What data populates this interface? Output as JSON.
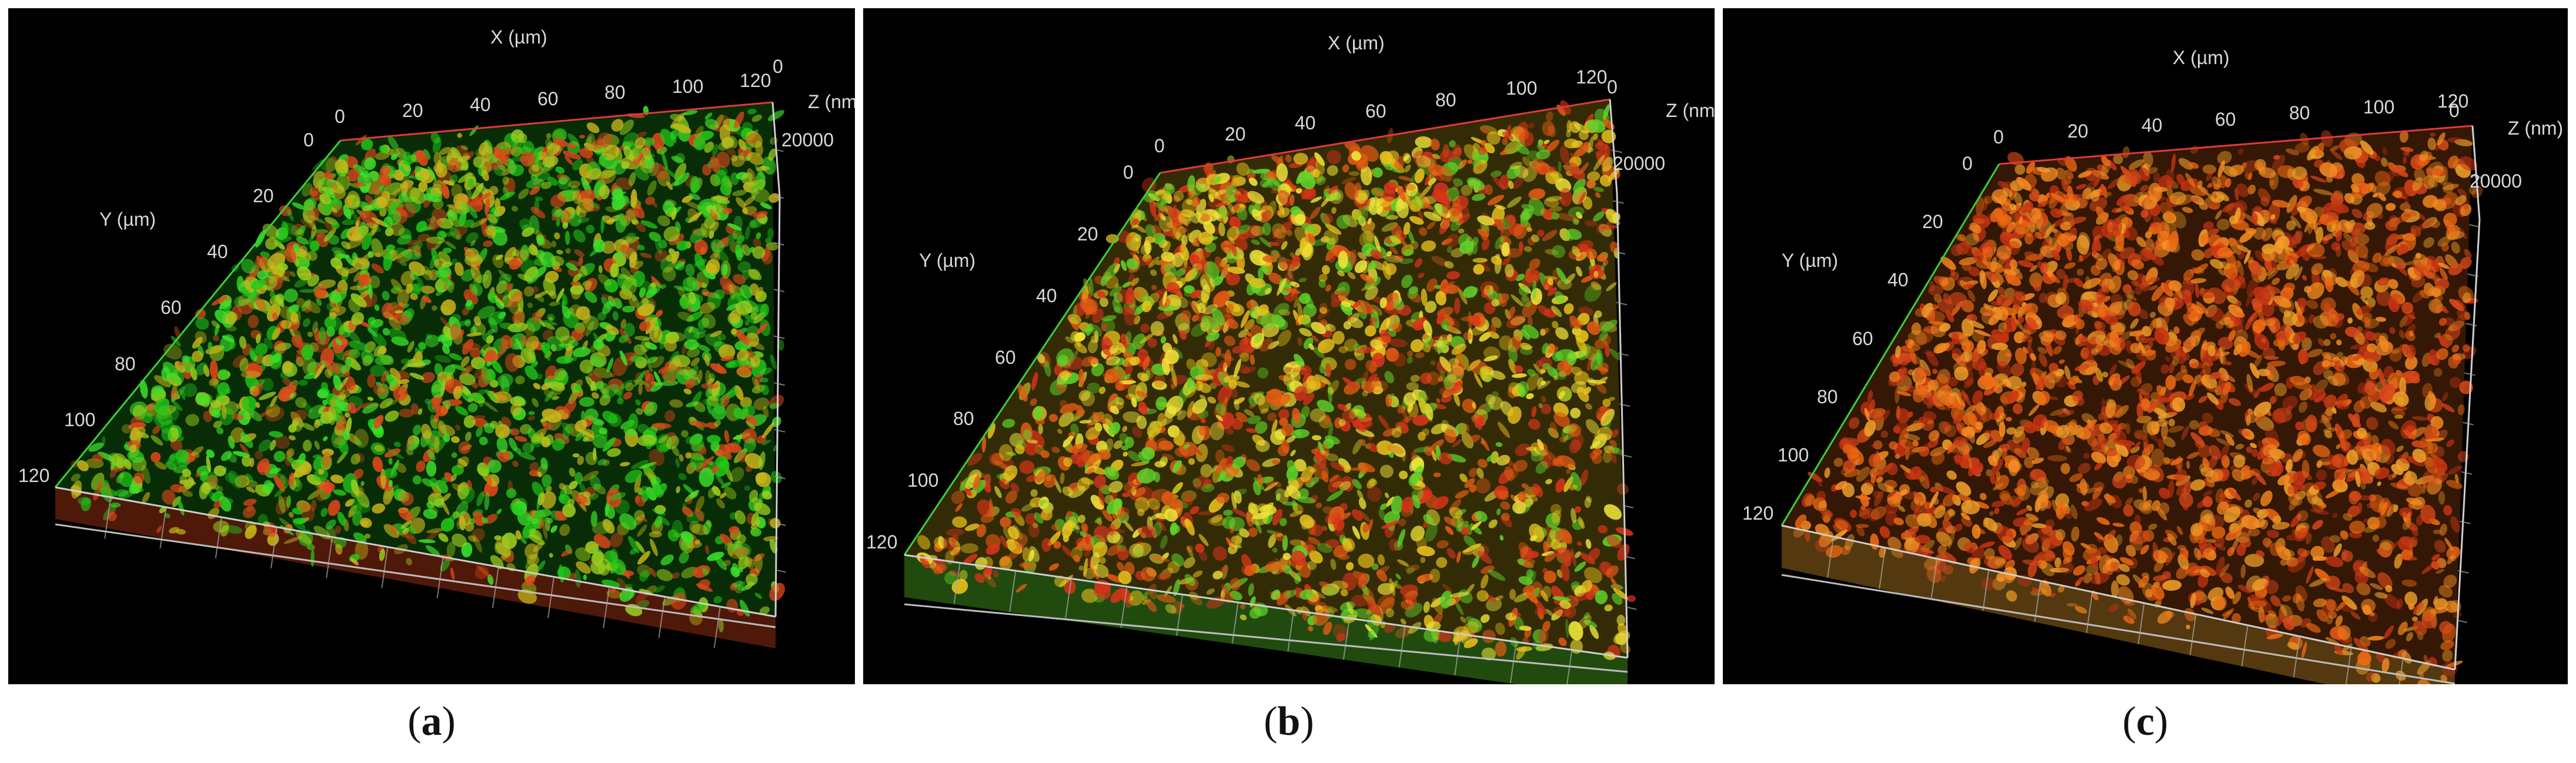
{
  "panels": [
    {
      "id": "a",
      "caption_open": "(",
      "caption_letter": "a",
      "caption_close": ")",
      "x_axis_label": "X (µm)",
      "y_axis_label": "Y (µm)",
      "z_axis_label": "Z (nm)",
      "x_ticks": [
        "0",
        "20",
        "40",
        "60",
        "80",
        "100",
        "120"
      ],
      "y_ticks": [
        "0",
        "20",
        "40",
        "60",
        "80",
        "100",
        "120"
      ],
      "z_ticks": [
        "0",
        "20000"
      ],
      "colors": [
        "#22c71a",
        "#3be02a",
        "#9ccf1f",
        "#e0471b",
        "#c8b51b"
      ]
    },
    {
      "id": "b",
      "caption_open": "(",
      "caption_letter": "b",
      "caption_close": ")",
      "x_axis_label": "X (µm)",
      "y_axis_label": "Y (µm)",
      "z_axis_label": "Z (nm",
      "x_ticks": [
        "0",
        "20",
        "40",
        "60",
        "80",
        "100",
        "120"
      ],
      "y_ticks": [
        "0",
        "20",
        "40",
        "60",
        "80",
        "100",
        "120"
      ],
      "z_ticks": [
        "0",
        "20000"
      ],
      "colors": [
        "#e8c21d",
        "#e45c14",
        "#f0e63a",
        "#5fd42a",
        "#d8341a"
      ]
    },
    {
      "id": "c",
      "caption_open": "(",
      "caption_letter": "c",
      "caption_close": ")",
      "x_axis_label": "X (µm)",
      "y_axis_label": "Y (µm)",
      "z_axis_label": "Z (nm)",
      "x_ticks": [
        "0",
        "20",
        "40",
        "60",
        "80",
        "100",
        "120"
      ],
      "y_ticks": [
        "0",
        "20",
        "40",
        "60",
        "80",
        "100",
        "120"
      ],
      "z_ticks": [
        "0",
        "20000"
      ],
      "colors": [
        "#ef6a14",
        "#f58a22",
        "#d8481a",
        "#f0a02a",
        "#c83414"
      ]
    }
  ]
}
